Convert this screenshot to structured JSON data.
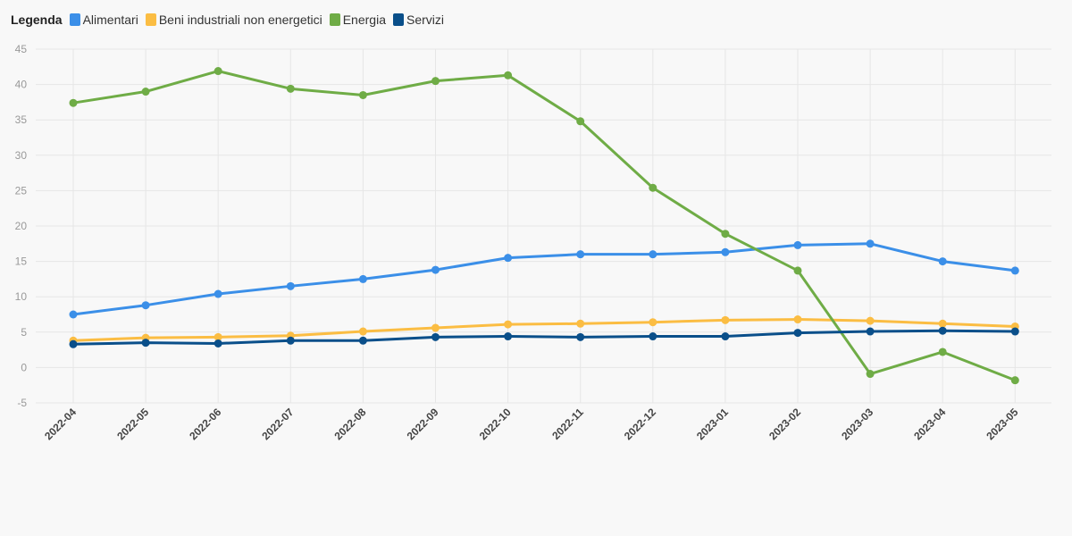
{
  "legend": {
    "title": "Legenda"
  },
  "chart_data": {
    "type": "line",
    "categories": [
      "2022-04",
      "2022-05",
      "2022-06",
      "2022-07",
      "2022-08",
      "2022-09",
      "2022-10",
      "2022-11",
      "2022-12",
      "2023-01",
      "2023-02",
      "2023-03",
      "2023-04",
      "2023-05"
    ],
    "ylim": [
      -5,
      45
    ],
    "yticks": [
      -5,
      0,
      5,
      10,
      15,
      20,
      25,
      30,
      35,
      40,
      45
    ],
    "grid": true,
    "legend_position": "top-left",
    "series": [
      {
        "name": "Alimentari",
        "color": "#3b8fe8",
        "values": [
          7.5,
          8.8,
          10.4,
          11.5,
          12.5,
          13.8,
          15.5,
          16.0,
          16.0,
          16.3,
          17.3,
          17.5,
          15.0,
          13.7
        ]
      },
      {
        "name": "Beni industriali non energetici",
        "color": "#fbbd43",
        "values": [
          3.8,
          4.2,
          4.3,
          4.5,
          5.1,
          5.6,
          6.1,
          6.2,
          6.4,
          6.7,
          6.8,
          6.6,
          6.2,
          5.8
        ]
      },
      {
        "name": "Energia",
        "color": "#6fac46",
        "values": [
          37.4,
          39.0,
          41.9,
          39.4,
          38.5,
          40.5,
          41.3,
          34.8,
          25.4,
          18.9,
          13.7,
          -0.9,
          2.2,
          -1.8
        ]
      },
      {
        "name": "Servizi",
        "color": "#0a4f8a",
        "values": [
          3.3,
          3.5,
          3.4,
          3.8,
          3.8,
          4.3,
          4.4,
          4.3,
          4.4,
          4.4,
          4.9,
          5.1,
          5.2,
          5.1
        ]
      }
    ]
  }
}
